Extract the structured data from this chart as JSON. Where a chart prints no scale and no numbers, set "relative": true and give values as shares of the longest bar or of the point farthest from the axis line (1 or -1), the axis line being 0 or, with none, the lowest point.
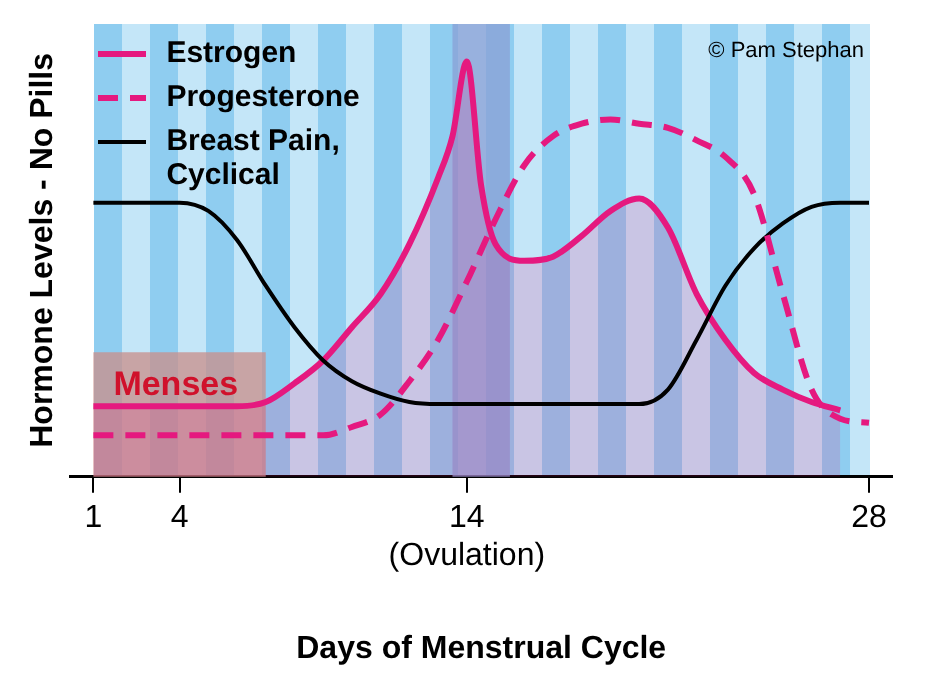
{
  "chart_data": {
    "type": "line",
    "relative": true,
    "xlabel": "Days of Menstrual Cycle",
    "ylabel": "Hormone Levels - No Pills",
    "xlim": [
      0.2,
      28.8
    ],
    "xticks": [
      1,
      4,
      {
        "value": 14,
        "label": "14\n(Ovulation)"
      },
      28
    ],
    "legend": "top left",
    "series": [
      {
        "name": "Estrogen",
        "type": "area",
        "color": "#e5197f",
        "line_style": "solid",
        "x": [
          1,
          6,
          7,
          8,
          9,
          10,
          11,
          12,
          13,
          13.5,
          14,
          14.5,
          15,
          16,
          17,
          18,
          19,
          20,
          21,
          22,
          23,
          24,
          25,
          26,
          27
        ],
        "values": [
          0.17,
          0.17,
          0.18,
          0.225,
          0.28,
          0.36,
          0.44,
          0.56,
          0.72,
          0.82,
          1,
          0.7,
          0.56,
          0.52,
          0.53,
          0.58,
          0.64,
          0.67,
          0.6,
          0.44,
          0.33,
          0.25,
          0.21,
          0.18,
          0.16
        ]
      },
      {
        "name": "Progesterone",
        "type": "line",
        "color": "#e5197f",
        "line_style": "dashed",
        "x": [
          1,
          9,
          10,
          11,
          12,
          13,
          14,
          15,
          16,
          17,
          18,
          19,
          20,
          21,
          22,
          23,
          24,
          25,
          26,
          27,
          28
        ],
        "values": [
          0.1,
          0.1,
          0.12,
          0.15,
          0.23,
          0.33,
          0.47,
          0.62,
          0.75,
          0.82,
          0.85,
          0.86,
          0.85,
          0.84,
          0.81,
          0.77,
          0.68,
          0.44,
          0.21,
          0.14,
          0.13
        ]
      },
      {
        "name": "Breast Pain, Cyclical",
        "type": "line",
        "color": "#000000",
        "line_style": "solid",
        "x": [
          1,
          4,
          5,
          6,
          7,
          8,
          9,
          10,
          11,
          12,
          13,
          20,
          21,
          22,
          23,
          24,
          25,
          26,
          27,
          28
        ],
        "values": [
          0.66,
          0.66,
          0.64,
          0.57,
          0.46,
          0.36,
          0.28,
          0.23,
          0.2,
          0.18,
          0.175,
          0.175,
          0.21,
          0.33,
          0.46,
          0.55,
          0.61,
          0.65,
          0.66,
          0.66
        ]
      }
    ],
    "bands": [
      {
        "axis": "x",
        "from": 1,
        "to": 7,
        "label": "Menses",
        "color": "#c98d8a"
      },
      {
        "axis": "x",
        "from": 13.5,
        "to": 15.5,
        "color": "#8a9fd6"
      }
    ],
    "annotations": [
      "© Pam Stephan"
    ]
  }
}
